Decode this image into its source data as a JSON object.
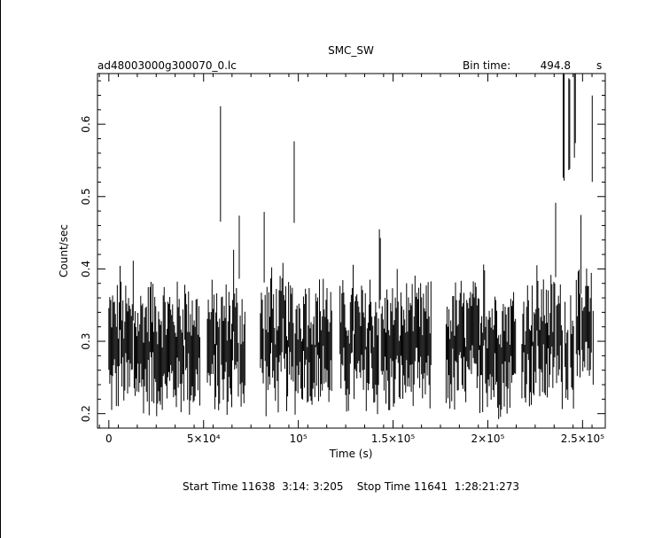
{
  "chart_data": {
    "type": "scatter",
    "style": "light-curve with vertical error bars",
    "title": "SMC_SW",
    "file_label": "ad48003000g300070_0.lc",
    "bin_time_label": "Bin time:",
    "bin_time_value": "494.8",
    "bin_time_unit": "s",
    "xlabel": "Time (s)",
    "ylabel": "Count/sec",
    "xlim": [
      -6000,
      262000
    ],
    "ylim": [
      0.18,
      0.67
    ],
    "x_ticks": [
      {
        "v": 0,
        "label": "0"
      },
      {
        "v": 50000,
        "label": "5×10⁴"
      },
      {
        "v": 100000,
        "label": "10⁵"
      },
      {
        "v": 150000,
        "label": "1.5×10⁵"
      },
      {
        "v": 200000,
        "label": "2×10⁵"
      },
      {
        "v": 250000,
        "label": "2.5×10⁵"
      }
    ],
    "y_ticks": [
      {
        "v": 0.2,
        "label": "0.2"
      },
      {
        "v": 0.3,
        "label": "0.3"
      },
      {
        "v": 0.4,
        "label": "0.4"
      },
      {
        "v": 0.5,
        "label": "0.5"
      },
      {
        "v": 0.6,
        "label": "0.6"
      }
    ],
    "footer": "Start Time 11638  3:14: 3:205    Stop Time 11641  1:28:21:273",
    "segments": [
      {
        "x0": 0,
        "x1": 48000,
        "base": 0.29,
        "spikes": [
          [
            6000,
            0.36
          ],
          [
            13000,
            0.37
          ],
          [
            22000,
            0.33
          ],
          [
            40000,
            0.34
          ]
        ]
      },
      {
        "x0": 52000,
        "x1": 72000,
        "base": 0.29,
        "spikes": [
          [
            59000,
            0.545
          ],
          [
            66000,
            0.37
          ],
          [
            69000,
            0.43
          ]
        ]
      },
      {
        "x0": 80000,
        "x1": 118000,
        "base": 0.295,
        "spikes": [
          [
            82000,
            0.43
          ],
          [
            86000,
            0.35
          ],
          [
            92000,
            0.37
          ],
          [
            98000,
            0.52
          ],
          [
            104000,
            0.32
          ],
          [
            113000,
            0.34
          ]
        ]
      },
      {
        "x0": 122000,
        "x1": 170000,
        "base": 0.29,
        "spikes": [
          [
            129000,
            0.36
          ],
          [
            138000,
            0.35
          ],
          [
            143000,
            0.4
          ],
          [
            152000,
            0.34
          ],
          [
            159000,
            0.31
          ]
        ]
      },
      {
        "x0": 178000,
        "x1": 215000,
        "base": 0.29,
        "spikes": [
          [
            186000,
            0.33
          ],
          [
            192000,
            0.33
          ],
          [
            198000,
            0.35
          ],
          [
            209000,
            0.31
          ]
        ]
      },
      {
        "x0": 218000,
        "x1": 256000,
        "base": 0.3,
        "spikes": [
          [
            226000,
            0.36
          ],
          [
            231000,
            0.32
          ],
          [
            236000,
            0.44
          ],
          [
            240000,
            0.6
          ],
          [
            243000,
            0.6
          ],
          [
            246000,
            0.63
          ],
          [
            249000,
            0.42
          ],
          [
            252000,
            0.35
          ],
          [
            255000,
            0.58
          ]
        ]
      }
    ],
    "bin_time_s": 494.8
  }
}
